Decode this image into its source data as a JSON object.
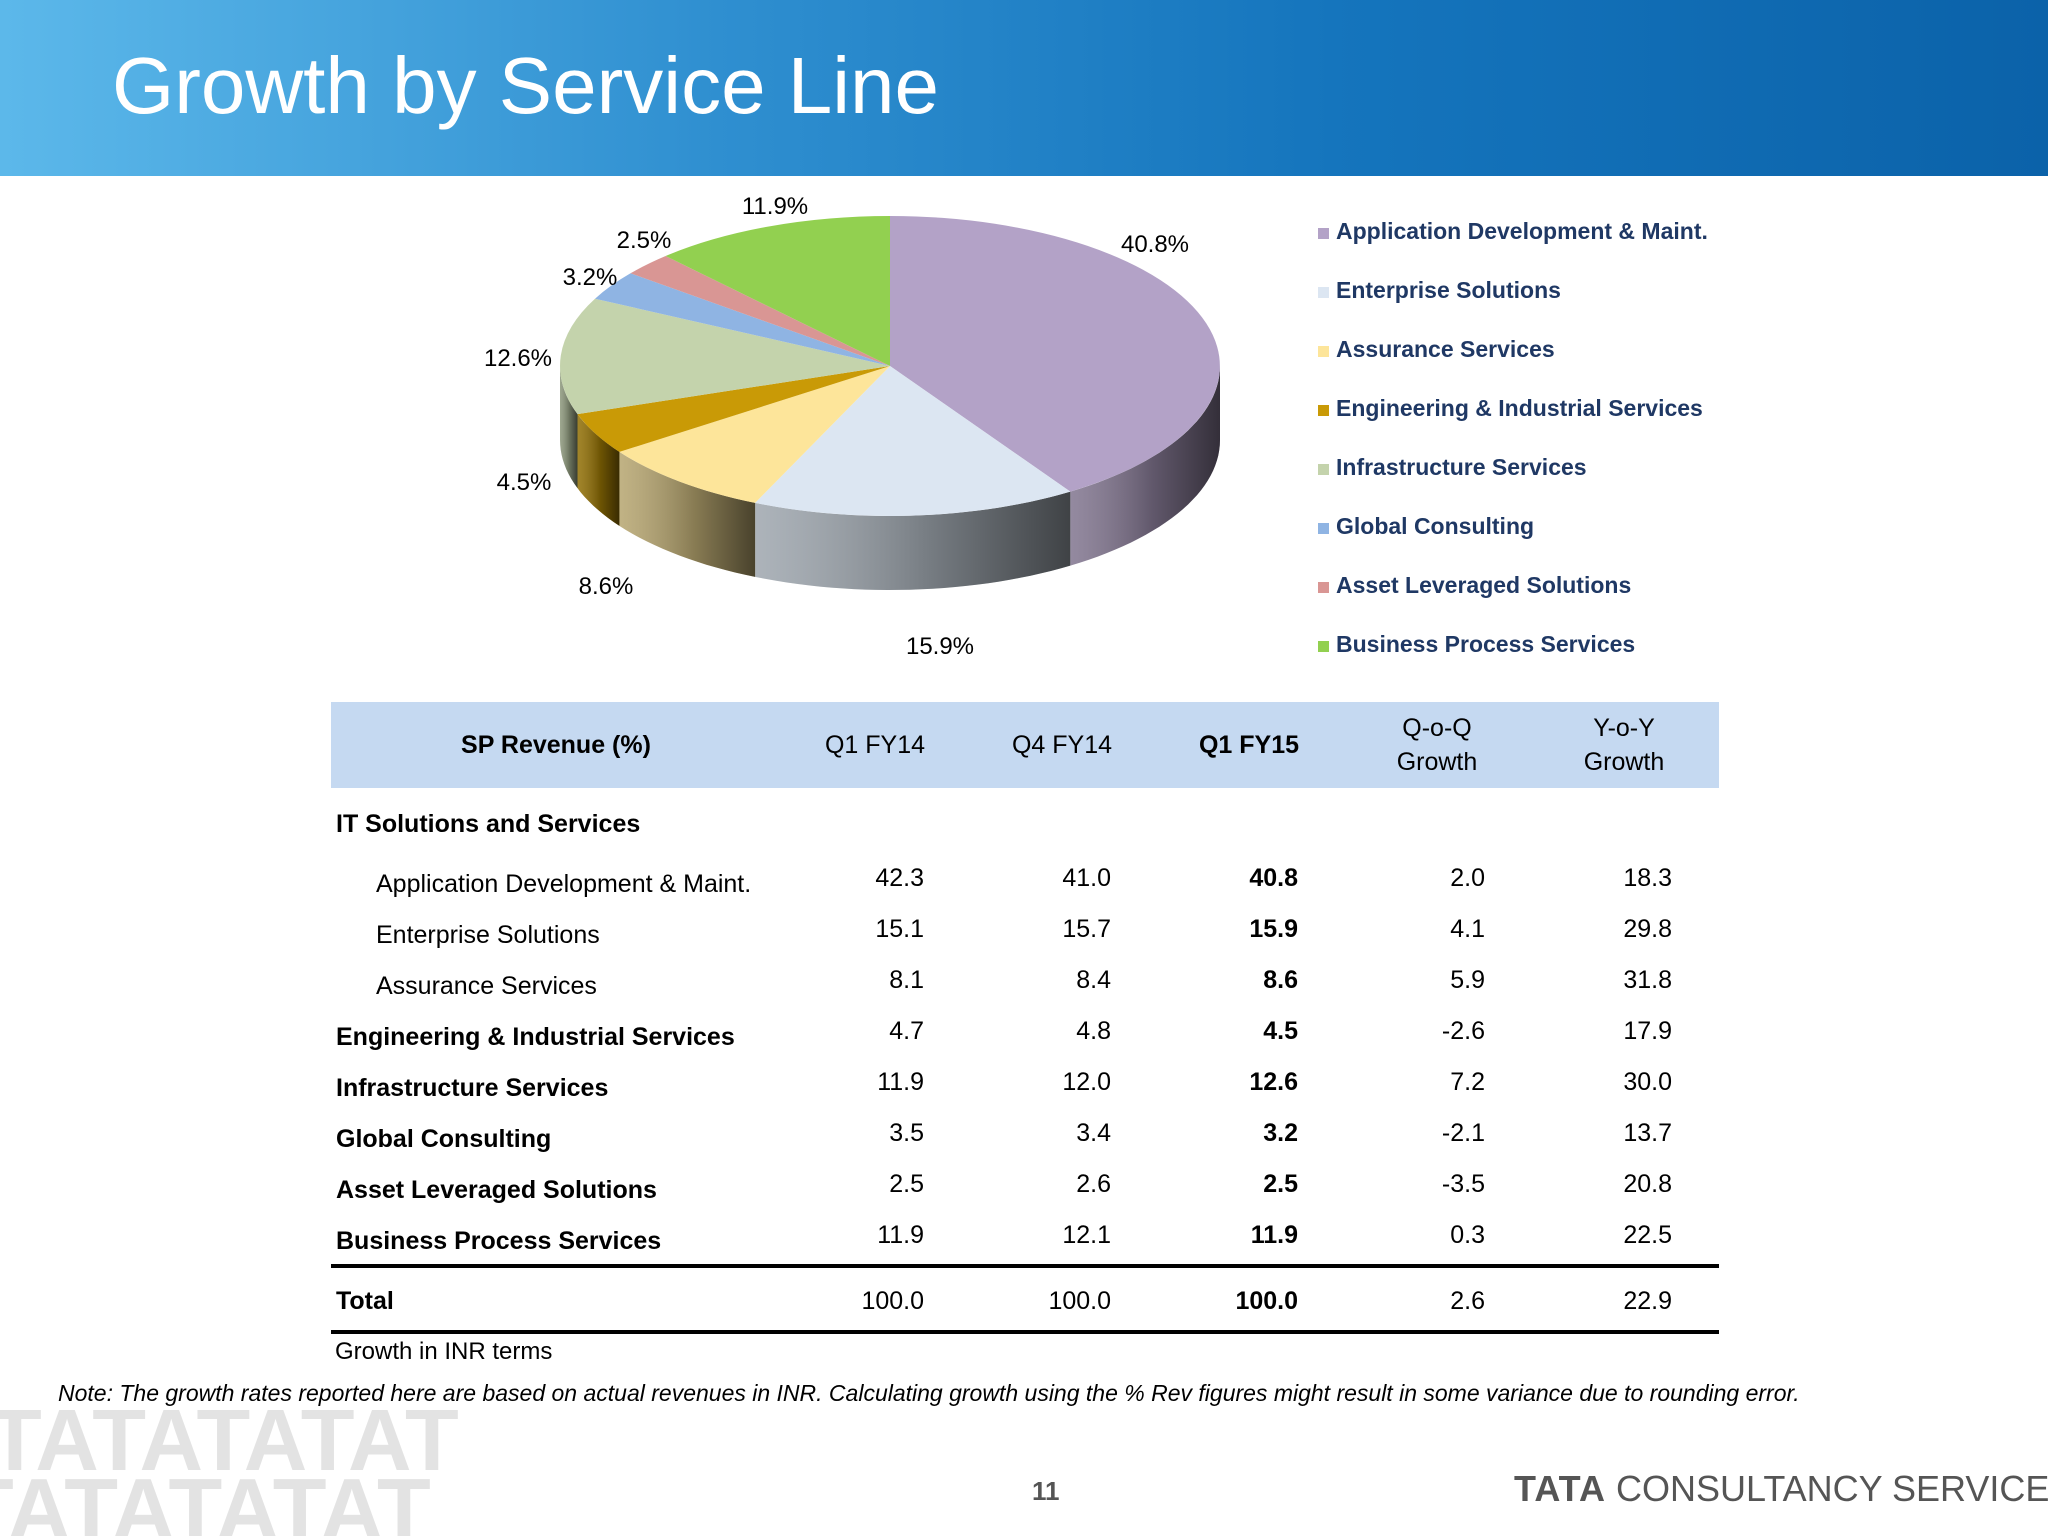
{
  "header": {
    "title": "Growth by Service Line"
  },
  "chart_data": {
    "type": "pie",
    "categories": [
      "Application Development & Maint.",
      "Enterprise Solutions",
      "Assurance Services",
      "Engineering & Industrial Services",
      "Infrastructure Services",
      "Global Consulting",
      "Asset Leveraged Solutions",
      "Business Process Services"
    ],
    "values": [
      40.8,
      15.9,
      8.6,
      4.5,
      12.6,
      3.2,
      2.5,
      11.9
    ],
    "data_labels": [
      "40.8%",
      "15.9%",
      "8.6%",
      "4.5%",
      "12.6%",
      "3.2%",
      "2.5%",
      "11.9%"
    ],
    "colors": [
      "#b3a2c7",
      "#dce6f2",
      "#fde59a",
      "#c99a06",
      "#c4d3ac",
      "#8fb4e3",
      "#d99694",
      "#92d050"
    ],
    "legend_position": "right"
  },
  "table": {
    "headers": {
      "label": "SP Revenue (%)",
      "q1fy14": "Q1 FY14",
      "q4fy14": "Q4 FY14",
      "q1fy15": "Q1 FY15",
      "qoq_line1": "Q-o-Q",
      "qoq_line2": "Growth",
      "yoy_line1": "Y-o-Y",
      "yoy_line2": "Growth"
    },
    "section_title": "IT Solutions and Services",
    "rows": [
      {
        "label": "Application Development & Maint.",
        "q1fy14": "42.3",
        "q4fy14": "41.0",
        "q1fy15": "40.8",
        "qoq": "2.0",
        "yoy": "18.3"
      },
      {
        "label": "Enterprise Solutions",
        "q1fy14": "15.1",
        "q4fy14": "15.7",
        "q1fy15": "15.9",
        "qoq": "4.1",
        "yoy": "29.8"
      },
      {
        "label": "Assurance Services",
        "q1fy14": "8.1",
        "q4fy14": "8.4",
        "q1fy15": "8.6",
        "qoq": "5.9",
        "yoy": "31.8"
      },
      {
        "label": "Engineering & Industrial Services",
        "q1fy14": "4.7",
        "q4fy14": "4.8",
        "q1fy15": "4.5",
        "qoq": "-2.6",
        "yoy": "17.9"
      },
      {
        "label": "Infrastructure Services",
        "q1fy14": "11.9",
        "q4fy14": "12.0",
        "q1fy15": "12.6",
        "qoq": "7.2",
        "yoy": "30.0"
      },
      {
        "label": "Global Consulting",
        "q1fy14": "3.5",
        "q4fy14": "3.4",
        "q1fy15": "3.2",
        "qoq": "-2.1",
        "yoy": "13.7"
      },
      {
        "label": "Asset Leveraged Solutions",
        "q1fy14": "2.5",
        "q4fy14": "2.6",
        "q1fy15": "2.5",
        "qoq": "-3.5",
        "yoy": "20.8"
      },
      {
        "label": "Business Process Services",
        "q1fy14": "11.9",
        "q4fy14": "12.1",
        "q1fy15": "11.9",
        "qoq": "0.3",
        "yoy": "22.5"
      }
    ],
    "total": {
      "label": "Total",
      "q1fy14": "100.0",
      "q4fy14": "100.0",
      "q1fy15": "100.0",
      "qoq": "2.6",
      "yoy": "22.9"
    },
    "caption": "Growth in INR terms"
  },
  "note": "Note: The growth rates reported here are based on actual revenues in INR. Calculating growth using the % Rev figures might result in some variance due to rounding error.",
  "footer": {
    "page_number": "11",
    "brand_tata": "TATA",
    "brand_rest": "CONSULTANCY SERVICES",
    "watermark_text": "TATATATAT"
  }
}
